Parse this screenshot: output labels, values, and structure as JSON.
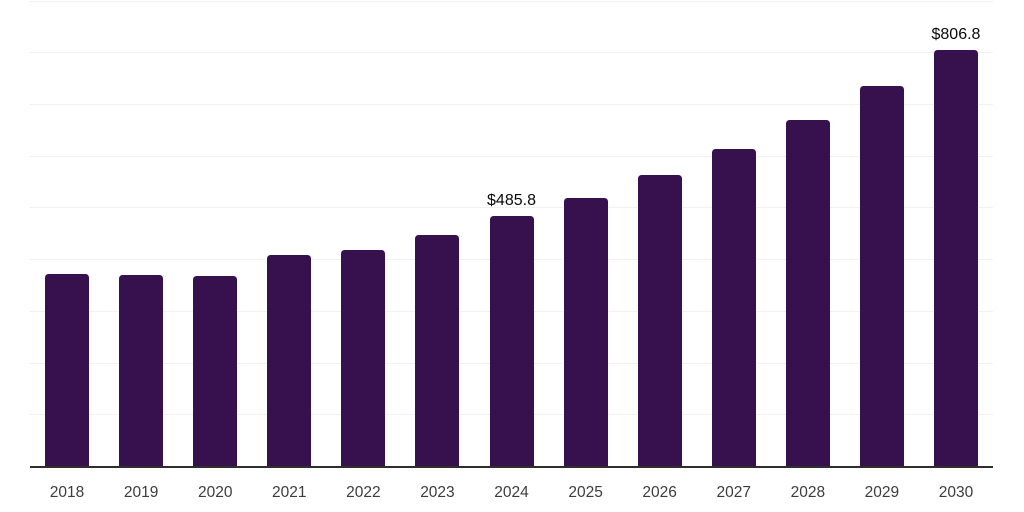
{
  "chart_data": {
    "type": "bar",
    "title": "",
    "xlabel": "",
    "ylabel": "",
    "categories": [
      "2018",
      "2019",
      "2020",
      "2021",
      "2022",
      "2023",
      "2024",
      "2025",
      "2026",
      "2027",
      "2028",
      "2029",
      "2030"
    ],
    "values": [
      373,
      371,
      370,
      409,
      420,
      448,
      485.8,
      521,
      565,
      615,
      671,
      736,
      806.8
    ],
    "value_labels": {
      "2024": "$485.8",
      "2030": "$806.8"
    },
    "ylim": [
      0,
      900
    ],
    "gridline_step": 100,
    "grid": "horizontal",
    "legend": "none",
    "colors": {
      "bar": "#36114e",
      "gridline": "#f1f1f1",
      "axis": "#2e2e2e",
      "tick_label": "#3c3c3c",
      "value_label": "#0a0a0a"
    }
  }
}
